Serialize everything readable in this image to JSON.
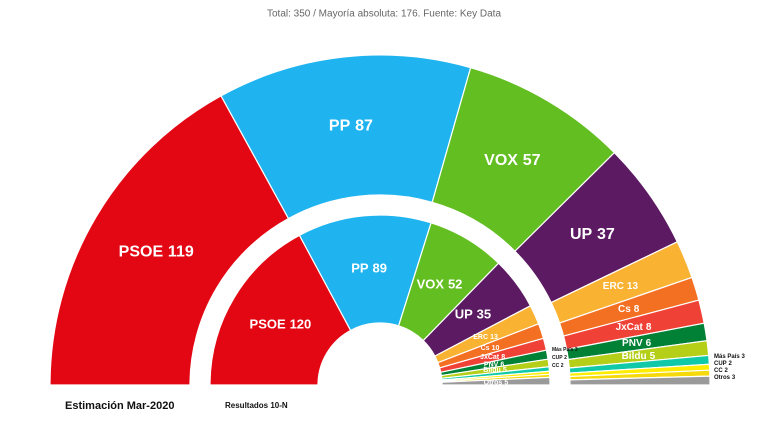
{
  "chart_data": {
    "type": "parliament",
    "subtitle": "Total: 350 / Mayoría absoluta: 176. Fuente: Key Data",
    "rings": [
      {
        "name": "Estimación Mar-2020",
        "categories": [
          "PSOE",
          "PP",
          "VOX",
          "UP",
          "ERC",
          "Cs",
          "JxCat",
          "PNV",
          "Bildu",
          "Más País",
          "CUP",
          "CC",
          "Otros"
        ],
        "values": [
          119,
          87,
          57,
          37,
          13,
          8,
          8,
          6,
          5,
          3,
          2,
          2,
          3
        ],
        "colors": [
          "#e30613",
          "#1fb4ef",
          "#63be21",
          "#5b1a61",
          "#f9b232",
          "#f36f21",
          "#ef4136",
          "#008135",
          "#b5cf18",
          "#0fc9a8",
          "#ffed00",
          "#f5d90a",
          "#9a9a9a"
        ]
      },
      {
        "name": "Resultados 10-N",
        "categories": [
          "PSOE",
          "PP",
          "VOX",
          "UP",
          "ERC",
          "Cs",
          "JxCat",
          "PNV",
          "Bildu",
          "Más País",
          "CUP",
          "CC",
          "Otros"
        ],
        "values": [
          120,
          89,
          52,
          35,
          13,
          10,
          8,
          6,
          5,
          3,
          2,
          2,
          5
        ],
        "colors": [
          "#e30613",
          "#1fb4ef",
          "#63be21",
          "#5b1a61",
          "#f9b232",
          "#f36f21",
          "#ef4136",
          "#008135",
          "#b5cf18",
          "#0fc9a8",
          "#ffed00",
          "#f5d90a",
          "#9a9a9a"
        ]
      }
    ]
  }
}
